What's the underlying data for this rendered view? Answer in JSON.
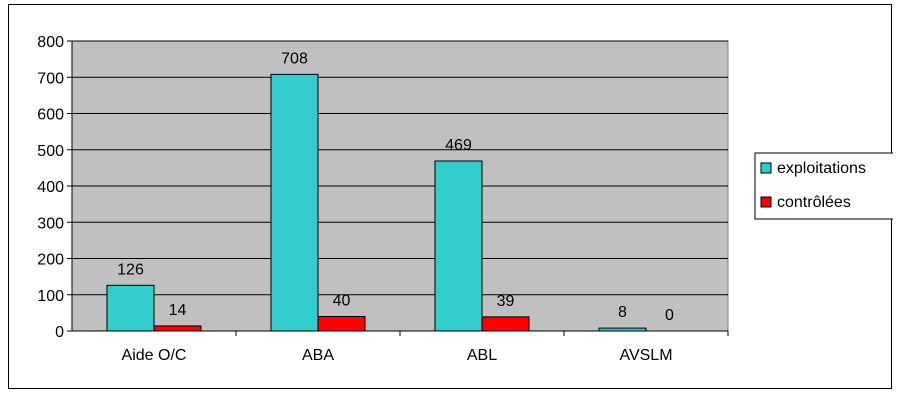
{
  "chart_data": {
    "type": "bar",
    "title": "",
    "xlabel": "",
    "ylabel": "",
    "categories": [
      "Aide O/C",
      "ABA",
      "ABL",
      "AVSLM"
    ],
    "series": [
      {
        "name": "exploitations",
        "values": [
          126,
          708,
          469,
          8
        ],
        "color": "#33CCCC"
      },
      {
        "name": "contrôlées",
        "values": [
          14,
          40,
          39,
          0
        ],
        "color": "#FF0000"
      }
    ],
    "ylim": [
      0,
      800
    ],
    "yticks": [
      0,
      100,
      200,
      300,
      400,
      500,
      600,
      700,
      800
    ],
    "grid": true,
    "gridlines": "horizontal",
    "data_labels": true,
    "plot_background": "#C0C0C0",
    "legend_position": "right"
  }
}
